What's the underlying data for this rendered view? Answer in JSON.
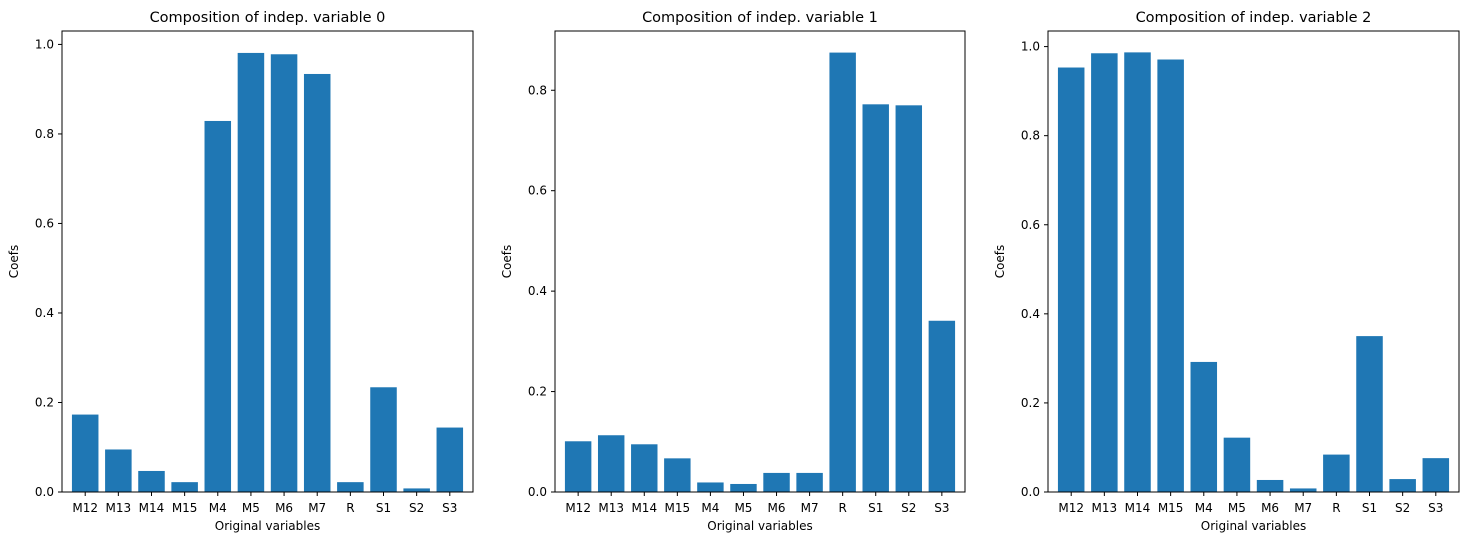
{
  "chart_data": [
    {
      "type": "bar",
      "title": "Composition of indep. variable 0",
      "xlabel": "Original variables",
      "ylabel": "Coefs",
      "categories": [
        "M12",
        "M13",
        "M14",
        "M15",
        "M4",
        "M5",
        "M6",
        "M7",
        "R",
        "S1",
        "S2",
        "S3"
      ],
      "values": [
        0.173,
        0.095,
        0.047,
        0.022,
        0.829,
        0.981,
        0.978,
        0.934,
        0.022,
        0.234,
        0.008,
        0.144
      ],
      "ylim": [
        0,
        1.03
      ],
      "yticks": [
        0.0,
        0.2,
        0.4,
        0.6,
        0.8,
        1.0
      ],
      "ytick_labels": [
        "0.0",
        "0.2",
        "0.4",
        "0.6",
        "0.8",
        "1.0"
      ],
      "color": "#1f77b4",
      "grid": false
    },
    {
      "type": "bar",
      "title": "Composition of indep. variable 1",
      "xlabel": "Original variables",
      "ylabel": "Coefs",
      "categories": [
        "M12",
        "M13",
        "M14",
        "M15",
        "M4",
        "M5",
        "M6",
        "M7",
        "R",
        "S1",
        "S2",
        "S3"
      ],
      "values": [
        0.101,
        0.113,
        0.095,
        0.067,
        0.019,
        0.016,
        0.038,
        0.038,
        0.875,
        0.772,
        0.77,
        0.341
      ],
      "ylim": [
        0,
        0.918
      ],
      "yticks": [
        0.0,
        0.2,
        0.4,
        0.6,
        0.8
      ],
      "ytick_labels": [
        "0.0",
        "0.2",
        "0.4",
        "0.6",
        "0.8"
      ],
      "color": "#1f77b4",
      "grid": false
    },
    {
      "type": "bar",
      "title": "Composition of indep. variable 2",
      "xlabel": "Original variables",
      "ylabel": "Coefs",
      "categories": [
        "M12",
        "M13",
        "M14",
        "M15",
        "M4",
        "M5",
        "M6",
        "M7",
        "R",
        "S1",
        "S2",
        "S3"
      ],
      "values": [
        0.953,
        0.985,
        0.987,
        0.971,
        0.292,
        0.122,
        0.027,
        0.008,
        0.084,
        0.35,
        0.029,
        0.076
      ],
      "ylim": [
        0,
        1.035
      ],
      "yticks": [
        0.0,
        0.2,
        0.4,
        0.6,
        0.8,
        1.0
      ],
      "ytick_labels": [
        "0.0",
        "0.2",
        "0.4",
        "0.6",
        "0.8",
        "1.0"
      ],
      "color": "#1f77b4",
      "grid": false
    }
  ]
}
